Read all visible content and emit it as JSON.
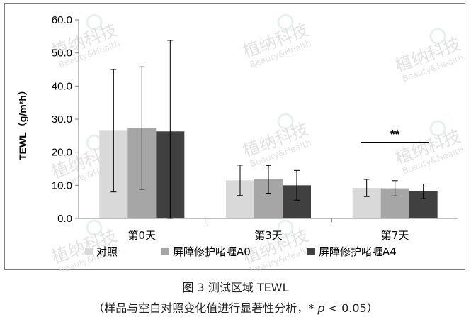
{
  "caption": {
    "title": "图 3   测试区域 TEWL",
    "note_prefix": "（样品与空白对照变化值进行显著性分析，* ",
    "note_p": "p",
    "note_suffix": " < 0.05）"
  },
  "watermark": {
    "cn": "植纳科技",
    "en": "Beauty&Health"
  },
  "chart_data": {
    "type": "bar",
    "ylabel": "TEWL（g/m²h）",
    "ylim": [
      0,
      60
    ],
    "yticks": [
      "0.0",
      "10.0",
      "20.0",
      "30.0",
      "40.0",
      "50.0",
      "60.0"
    ],
    "grid": false,
    "legend_position": "bottom",
    "categories": [
      "第0天",
      "第3天",
      "第7天"
    ],
    "series": [
      {
        "name": "对照",
        "color": "#d9d9d9",
        "values": [
          26.5,
          11.5,
          9.2
        ],
        "errors": [
          18.5,
          4.6,
          2.6
        ]
      },
      {
        "name": "屏障修护啫喱A0",
        "color": "#a6a6a6",
        "values": [
          27.3,
          11.8,
          9.1
        ],
        "errors": [
          18.5,
          4.2,
          2.3
        ]
      },
      {
        "name": "屏障修护啫喱A4",
        "color": "#404040",
        "values": [
          26.3,
          10.0,
          8.2
        ],
        "errors": [
          27.5,
          4.5,
          2.2
        ]
      }
    ],
    "significance": [
      {
        "category_index": 2,
        "label": "**"
      }
    ]
  }
}
